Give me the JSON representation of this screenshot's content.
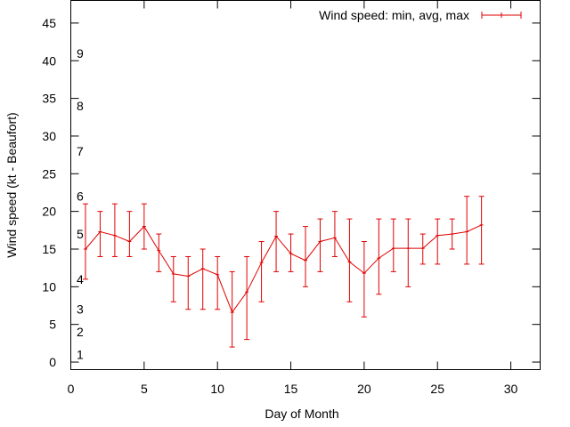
{
  "chart_data": {
    "type": "line",
    "xlabel": "Day of Month",
    "ylabel": "Wind speed (kt - Beaufort)",
    "xlim": [
      0,
      32
    ],
    "ylim": [
      -1,
      48
    ],
    "x_ticks": [
      0,
      5,
      10,
      15,
      20,
      25,
      30
    ],
    "y_ticks": [
      0,
      5,
      10,
      15,
      20,
      25,
      30,
      35,
      40,
      45
    ],
    "beaufort_labels": [
      {
        "label": "1",
        "y": 1
      },
      {
        "label": "2",
        "y": 4
      },
      {
        "label": "3",
        "y": 7
      },
      {
        "label": "4",
        "y": 11
      },
      {
        "label": "5",
        "y": 17
      },
      {
        "label": "6",
        "y": 22
      },
      {
        "label": "7",
        "y": 28
      },
      {
        "label": "8",
        "y": 34
      },
      {
        "label": "9",
        "y": 41
      }
    ],
    "legend_position": "top-right",
    "grid": false,
    "series": [
      {
        "name": "Wind speed: min, avg, max",
        "color": "#e00000",
        "x": [
          1,
          2,
          3,
          4,
          5,
          6,
          7,
          8,
          9,
          10,
          11,
          12,
          13,
          14,
          15,
          16,
          17,
          18,
          19,
          20,
          21,
          22,
          23,
          24,
          25,
          26,
          27,
          28
        ],
        "avg": [
          15,
          17.3,
          16.8,
          16,
          18,
          14.8,
          11.7,
          11.4,
          12.4,
          11.6,
          6.6,
          9.3,
          13.2,
          16.7,
          14.4,
          13.5,
          16,
          16.5,
          13.3,
          11.8,
          13.8,
          15.1,
          15.1,
          15.1,
          16.8,
          17,
          17.3,
          18.2
        ],
        "min": [
          11,
          14,
          14,
          14,
          15,
          12,
          8,
          7,
          7,
          7,
          2,
          3,
          8,
          12,
          12,
          10,
          12,
          14,
          8,
          6,
          9,
          12,
          10,
          13,
          13,
          15,
          13,
          13
        ],
        "max": [
          21,
          20,
          21,
          20,
          21,
          17,
          14,
          14,
          15,
          14,
          12,
          14,
          16,
          20,
          17,
          18,
          19,
          20,
          19,
          16,
          19,
          19,
          19,
          17,
          19,
          19,
          22,
          22
        ]
      }
    ]
  }
}
